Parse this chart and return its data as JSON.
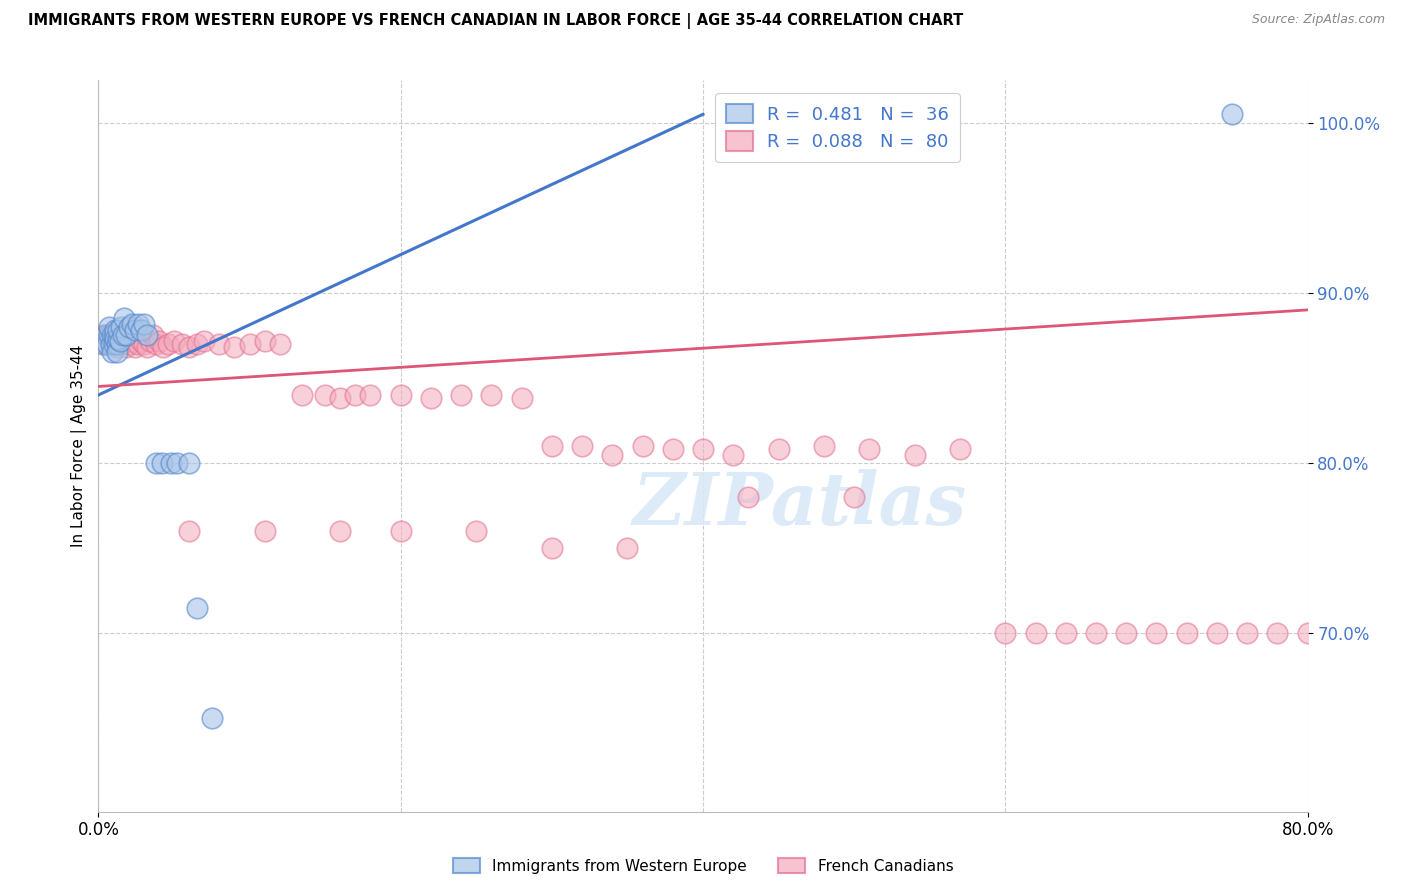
{
  "title": "IMMIGRANTS FROM WESTERN EUROPE VS FRENCH CANADIAN IN LABOR FORCE | AGE 35-44 CORRELATION CHART",
  "source": "Source: ZipAtlas.com",
  "ylabel": "In Labor Force | Age 35-44",
  "legend_blue_r": "0.481",
  "legend_blue_n": "36",
  "legend_pink_r": "0.088",
  "legend_pink_n": "80",
  "legend_label_blue": "Immigrants from Western Europe",
  "legend_label_pink": "French Canadians",
  "watermark": "ZIPatlas",
  "blue_fill": "#A8C4E8",
  "pink_fill": "#F4AABC",
  "blue_edge": "#5588CC",
  "pink_edge": "#E07090",
  "blue_line": "#4477CC",
  "pink_line": "#DD5577",
  "x_min": 0.0,
  "x_max": 0.8,
  "y_min": 0.595,
  "y_max": 1.025,
  "ytick_vals": [
    0.7,
    0.8,
    0.9,
    1.0
  ],
  "ytick_labels": [
    "70.0%",
    "80.0%",
    "90.0%",
    "100.0%"
  ],
  "xtick_vals": [
    0.0,
    0.8
  ],
  "xtick_labels": [
    "0.0%",
    "80.0%"
  ],
  "blue_x": [
    0.003,
    0.005,
    0.006,
    0.007,
    0.007,
    0.008,
    0.009,
    0.009,
    0.01,
    0.01,
    0.011,
    0.011,
    0.012,
    0.012,
    0.013,
    0.013,
    0.014,
    0.015,
    0.016,
    0.017,
    0.018,
    0.02,
    0.022,
    0.024,
    0.026,
    0.028,
    0.03,
    0.032,
    0.038,
    0.042,
    0.048,
    0.052,
    0.06,
    0.065,
    0.075,
    0.75
  ],
  "blue_y": [
    0.87,
    0.875,
    0.87,
    0.875,
    0.88,
    0.87,
    0.875,
    0.865,
    0.875,
    0.87,
    0.878,
    0.873,
    0.87,
    0.865,
    0.873,
    0.878,
    0.872,
    0.88,
    0.875,
    0.885,
    0.875,
    0.88,
    0.882,
    0.878,
    0.882,
    0.878,
    0.882,
    0.875,
    0.8,
    0.8,
    0.8,
    0.8,
    0.8,
    0.715,
    0.65,
    1.005
  ],
  "pink_x": [
    0.003,
    0.004,
    0.005,
    0.006,
    0.007,
    0.008,
    0.009,
    0.01,
    0.011,
    0.012,
    0.013,
    0.014,
    0.015,
    0.016,
    0.018,
    0.02,
    0.022,
    0.024,
    0.026,
    0.028,
    0.03,
    0.032,
    0.034,
    0.036,
    0.038,
    0.04,
    0.043,
    0.046,
    0.05,
    0.055,
    0.06,
    0.065,
    0.07,
    0.08,
    0.09,
    0.1,
    0.11,
    0.12,
    0.135,
    0.15,
    0.16,
    0.17,
    0.18,
    0.2,
    0.22,
    0.24,
    0.26,
    0.28,
    0.3,
    0.32,
    0.34,
    0.36,
    0.38,
    0.4,
    0.42,
    0.45,
    0.48,
    0.51,
    0.54,
    0.57,
    0.6,
    0.62,
    0.64,
    0.66,
    0.68,
    0.7,
    0.72,
    0.74,
    0.76,
    0.78,
    0.8,
    0.06,
    0.11,
    0.16,
    0.2,
    0.25,
    0.3,
    0.35,
    0.43,
    0.5
  ],
  "pink_y": [
    0.875,
    0.87,
    0.875,
    0.87,
    0.872,
    0.87,
    0.872,
    0.875,
    0.872,
    0.868,
    0.872,
    0.87,
    0.875,
    0.872,
    0.868,
    0.87,
    0.872,
    0.868,
    0.87,
    0.872,
    0.87,
    0.868,
    0.872,
    0.875,
    0.87,
    0.872,
    0.868,
    0.87,
    0.872,
    0.87,
    0.868,
    0.87,
    0.872,
    0.87,
    0.868,
    0.87,
    0.872,
    0.87,
    0.84,
    0.84,
    0.838,
    0.84,
    0.84,
    0.84,
    0.838,
    0.84,
    0.84,
    0.838,
    0.81,
    0.81,
    0.805,
    0.81,
    0.808,
    0.808,
    0.805,
    0.808,
    0.81,
    0.808,
    0.805,
    0.808,
    0.7,
    0.7,
    0.7,
    0.7,
    0.7,
    0.7,
    0.7,
    0.7,
    0.7,
    0.7,
    0.7,
    0.76,
    0.76,
    0.76,
    0.76,
    0.76,
    0.75,
    0.75,
    0.78,
    0.78
  ]
}
